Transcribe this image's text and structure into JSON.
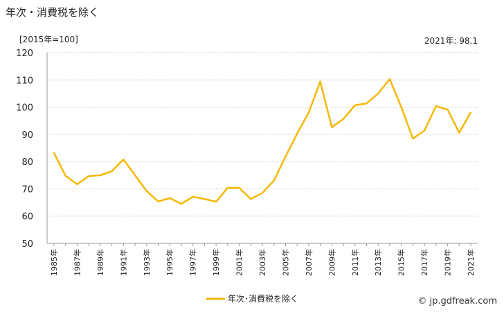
{
  "title": "年次・消費税を除く",
  "unit_label": "[2015年=100]",
  "latest_label": "2021年: 98.1",
  "credit": "© jp.gdfreak.com",
  "colors": {
    "line": "#f5b800",
    "grid": "#cfcfcf",
    "axis": "#999999"
  },
  "chart_data": {
    "type": "line",
    "title": "年次・消費税を除く",
    "ylim": [
      50,
      120
    ],
    "yticks": [
      50,
      60,
      70,
      80,
      90,
      100,
      110,
      120
    ],
    "grid": true,
    "legend": "bottom-center",
    "x": [
      "1985年",
      "1986年",
      "1987年",
      "1988年",
      "1989年",
      "1990年",
      "1991年",
      "1992年",
      "1993年",
      "1994年",
      "1995年",
      "1996年",
      "1997年",
      "1998年",
      "1999年",
      "2000年",
      "2001年",
      "2002年",
      "2003年",
      "2004年",
      "2005年",
      "2006年",
      "2007年",
      "2008年",
      "2009年",
      "2010年",
      "2011年",
      "2012年",
      "2013年",
      "2014年",
      "2015年",
      "2016年",
      "2017年",
      "2018年",
      "2019年",
      "2020年",
      "2021年"
    ],
    "x_tick_labels": [
      "1985年",
      "1987年",
      "1989年",
      "1991年",
      "1993年",
      "1995年",
      "1997年",
      "1999年",
      "2001年",
      "2003年",
      "2005年",
      "2007年",
      "2009年",
      "2011年",
      "2013年",
      "2015年",
      "2017年",
      "2019年",
      "2021年"
    ],
    "series": [
      {
        "name": "年次･消費税を除く",
        "values": [
          83.2,
          74.8,
          71.7,
          74.7,
          75.0,
          76.5,
          80.8,
          75.0,
          69.2,
          65.4,
          66.6,
          64.5,
          67.1,
          66.3,
          65.3,
          70.4,
          70.4,
          66.3,
          68.5,
          73.1,
          81.8,
          90.3,
          98.0,
          109.4,
          92.6,
          95.7,
          100.7,
          101.4,
          105.0,
          110.3,
          100.0,
          88.5,
          91.4,
          100.4,
          99.1,
          90.6,
          98.1
        ]
      }
    ]
  }
}
